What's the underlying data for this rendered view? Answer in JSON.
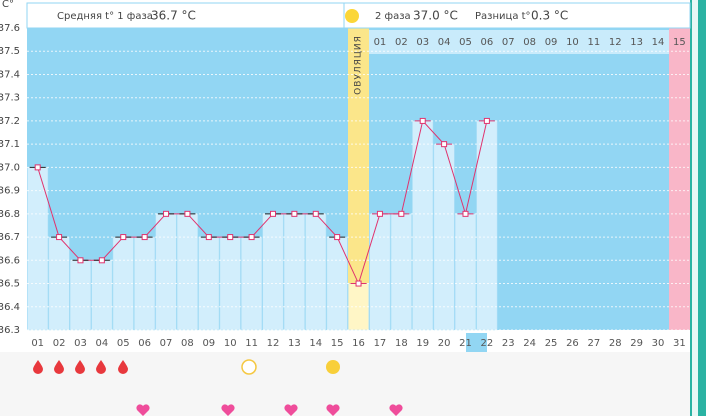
{
  "chart_data": {
    "type": "line",
    "y_label": "C°",
    "phase1_label": "Средняя t° 1 фаза",
    "phase1_value": "36.7 °C",
    "phase2_label": "2 фаза",
    "phase2_value": "37.0 °C",
    "diff_label": "Разница t°",
    "diff_value": "0.3 °C",
    "ovulation_label": "ОВУЛЯЦИЯ",
    "categories": [
      "01",
      "02",
      "03",
      "04",
      "05",
      "06",
      "07",
      "08",
      "09",
      "10",
      "11",
      "12",
      "13",
      "14",
      "15",
      "16",
      "17",
      "18",
      "19",
      "20",
      "21",
      "22",
      "23",
      "24",
      "25",
      "26",
      "27",
      "28",
      "29",
      "30",
      "31"
    ],
    "phase2_days": [
      "01",
      "02",
      "03",
      "04",
      "05",
      "06",
      "07",
      "08",
      "09",
      "10",
      "11",
      "12",
      "13",
      "14",
      "15"
    ],
    "values": [
      37.0,
      36.7,
      36.6,
      36.6,
      36.7,
      36.7,
      36.8,
      36.8,
      36.7,
      36.7,
      36.7,
      36.8,
      36.8,
      36.8,
      36.7,
      36.5,
      36.8,
      36.8,
      37.2,
      37.1,
      36.8,
      37.2,
      null,
      null,
      null,
      null,
      null,
      null,
      null,
      null,
      null
    ],
    "color": "#e0336e",
    "ylim": [
      36.3,
      37.6
    ],
    "yticks": [
      36.3,
      36.4,
      36.5,
      36.6,
      36.7,
      36.8,
      36.9,
      {
        "value": 37,
        "label": "37.0"
      },
      37.1,
      37.2,
      37.3,
      37.4,
      37.5,
      37.6
    ],
    "grid": true
  }
}
